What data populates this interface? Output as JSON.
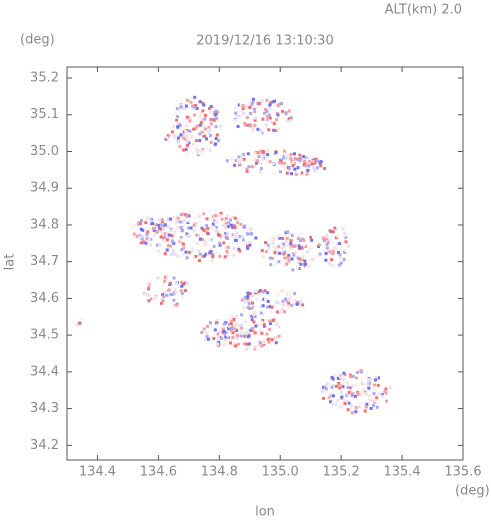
{
  "chart_data": {
    "type": "map",
    "title": "2019/12/16 13:10:30",
    "annotation": "ALT(km) 2.0",
    "y_unit": "(deg)",
    "x_unit": "(deg)",
    "xlabel": "lon",
    "ylabel": "lat",
    "xlim": [
      134.3,
      135.6
    ],
    "ylim": [
      34.16,
      35.23
    ],
    "xticks": [
      134.4,
      134.6,
      134.8,
      {
        "value": 135,
        "label": "135.0"
      },
      135.2,
      135.4,
      135.6
    ],
    "yticks": [
      34.2,
      34.3,
      34.4,
      34.5,
      34.6,
      34.7,
      34.8,
      34.9,
      {
        "value": 35,
        "label": "35.0"
      },
      35.1,
      35.2
    ]
  }
}
